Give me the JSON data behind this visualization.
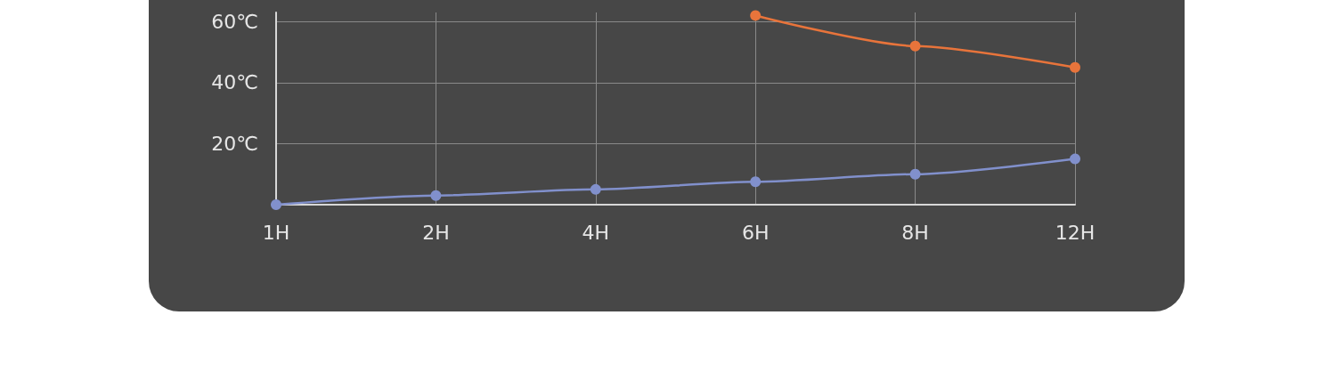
{
  "chart_data": {
    "type": "line",
    "categories": [
      "1H",
      "2H",
      "4H",
      "6H",
      "8H",
      "12H"
    ],
    "series": [
      {
        "color": "#e8743b",
        "values": [
          null,
          null,
          null,
          62,
          52,
          45
        ]
      },
      {
        "color": "#8190cc",
        "values": [
          0,
          3,
          5,
          7.5,
          10,
          15
        ]
      }
    ],
    "ylim": [
      0,
      63
    ],
    "yticks": [
      {
        "value": 20,
        "label": "20℃"
      },
      {
        "value": 40,
        "label": "40℃"
      },
      {
        "value": 60,
        "label": "60℃"
      }
    ],
    "grid": true,
    "marker": "circle"
  }
}
